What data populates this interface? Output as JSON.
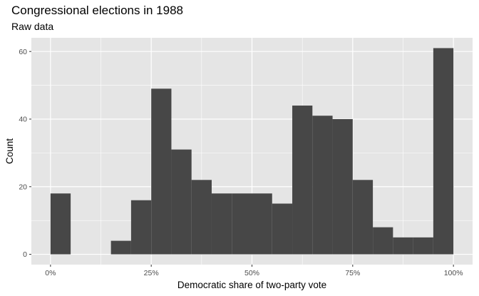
{
  "chart_data": {
    "type": "bar",
    "title": "Congressional elections in 1988",
    "subtitle": "Raw data",
    "xlabel": "Democratic share of two-party vote",
    "ylabel": "Count",
    "bin_width": 0.05,
    "bins": [
      {
        "x": 0.0,
        "count": 18
      },
      {
        "x": 0.05,
        "count": 0
      },
      {
        "x": 0.1,
        "count": 0
      },
      {
        "x": 0.15,
        "count": 4
      },
      {
        "x": 0.2,
        "count": 16
      },
      {
        "x": 0.25,
        "count": 49
      },
      {
        "x": 0.3,
        "count": 31
      },
      {
        "x": 0.35,
        "count": 22
      },
      {
        "x": 0.4,
        "count": 18
      },
      {
        "x": 0.45,
        "count": 18
      },
      {
        "x": 0.5,
        "count": 18
      },
      {
        "x": 0.55,
        "count": 15
      },
      {
        "x": 0.6,
        "count": 44
      },
      {
        "x": 0.65,
        "count": 41
      },
      {
        "x": 0.7,
        "count": 40
      },
      {
        "x": 0.75,
        "count": 22
      },
      {
        "x": 0.8,
        "count": 8
      },
      {
        "x": 0.85,
        "count": 5
      },
      {
        "x": 0.9,
        "count": 5
      },
      {
        "x": 0.95,
        "count": 61
      }
    ],
    "x_ticks": [
      {
        "value": 0.0,
        "label": "0%"
      },
      {
        "value": 0.25,
        "label": "25%"
      },
      {
        "value": 0.5,
        "label": "50%"
      },
      {
        "value": 0.75,
        "label": "75%"
      },
      {
        "value": 1.0,
        "label": "100%"
      }
    ],
    "y_ticks": [
      0,
      20,
      40,
      60
    ],
    "xlim": [
      -0.0475,
      1.0475
    ],
    "ylim": [
      -3.05,
      64.05
    ],
    "grid": true,
    "colors": {
      "panel": "#e5e5e5",
      "grid": "#ffffff",
      "bar": "#474747"
    }
  }
}
